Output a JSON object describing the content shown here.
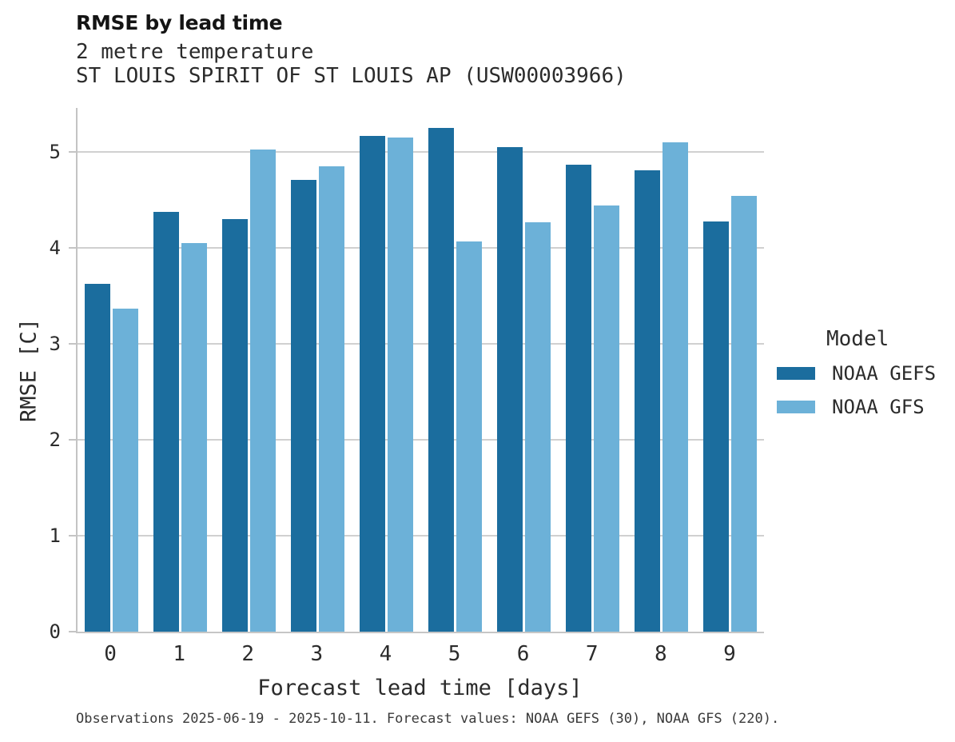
{
  "header": {
    "title": "RMSE by lead time",
    "subtitle": "2 metre temperature",
    "station": "ST LOUIS SPIRIT OF ST LOUIS AP (USW00003966)"
  },
  "chart_data": {
    "type": "bar",
    "title": "RMSE by lead time",
    "subtitle": "2 metre temperature",
    "station": "ST LOUIS SPIRIT OF ST LOUIS AP (USW00003966)",
    "categories": [
      "0",
      "1",
      "2",
      "3",
      "4",
      "5",
      "6",
      "7",
      "8",
      "9"
    ],
    "series": [
      {
        "name": "NOAA GEFS",
        "color": "#1b6d9e",
        "values": [
          3.63,
          4.38,
          4.3,
          4.71,
          5.17,
          5.25,
          5.05,
          4.87,
          4.81,
          4.28
        ]
      },
      {
        "name": "NOAA GFS",
        "color": "#6cb1d8",
        "values": [
          3.37,
          4.05,
          5.03,
          4.85,
          5.15,
          4.07,
          4.27,
          4.44,
          5.1,
          4.54
        ]
      }
    ],
    "xlabel": "Forecast lead time [days]",
    "ylabel": "RMSE [C]",
    "ylim": [
      0,
      5.46
    ],
    "yticks": [
      0,
      1,
      2,
      3,
      4,
      5
    ],
    "grid": true,
    "grid_color": "#d0d0d0",
    "legend_position": "right"
  },
  "legend": {
    "title": "Model"
  },
  "footer": {
    "caption": "Observations 2025-06-19 - 2025-10-11. Forecast values: NOAA GEFS (30), NOAA GFS (220)."
  }
}
